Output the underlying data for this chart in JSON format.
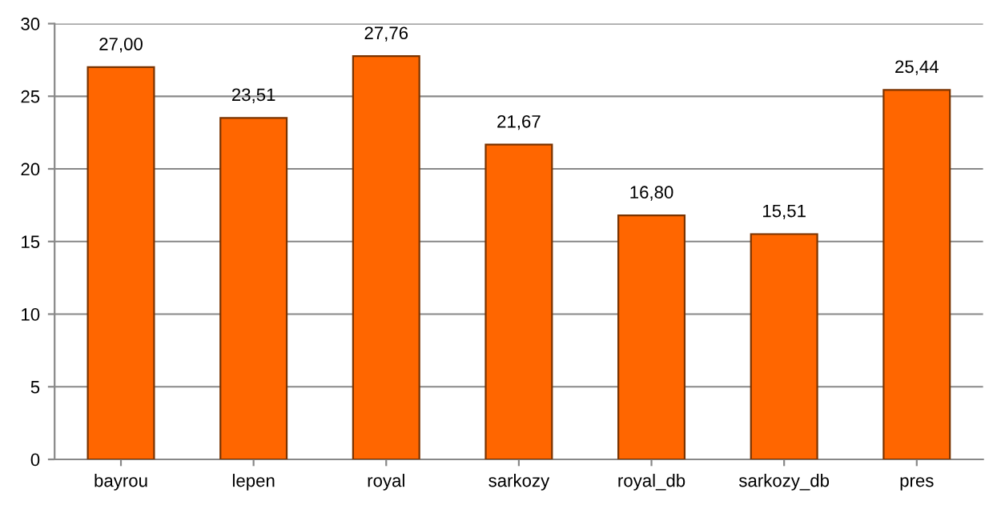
{
  "chart_data": {
    "type": "bar",
    "categories": [
      "bayrou",
      "lepen",
      "royal",
      "sarkozy",
      "royal_db",
      "sarkozy_db",
      "pres"
    ],
    "values": [
      27.0,
      23.51,
      27.76,
      21.67,
      16.8,
      15.51,
      25.44
    ],
    "value_labels": [
      "27,00",
      "23,51",
      "27,76",
      "21,67",
      "16,80",
      "15,51",
      "25,44"
    ],
    "color": "#ff6600",
    "ylim": [
      0,
      30
    ],
    "yticks": [
      0,
      5,
      10,
      15,
      20,
      25,
      30
    ],
    "grid": "y",
    "legend": false
  }
}
